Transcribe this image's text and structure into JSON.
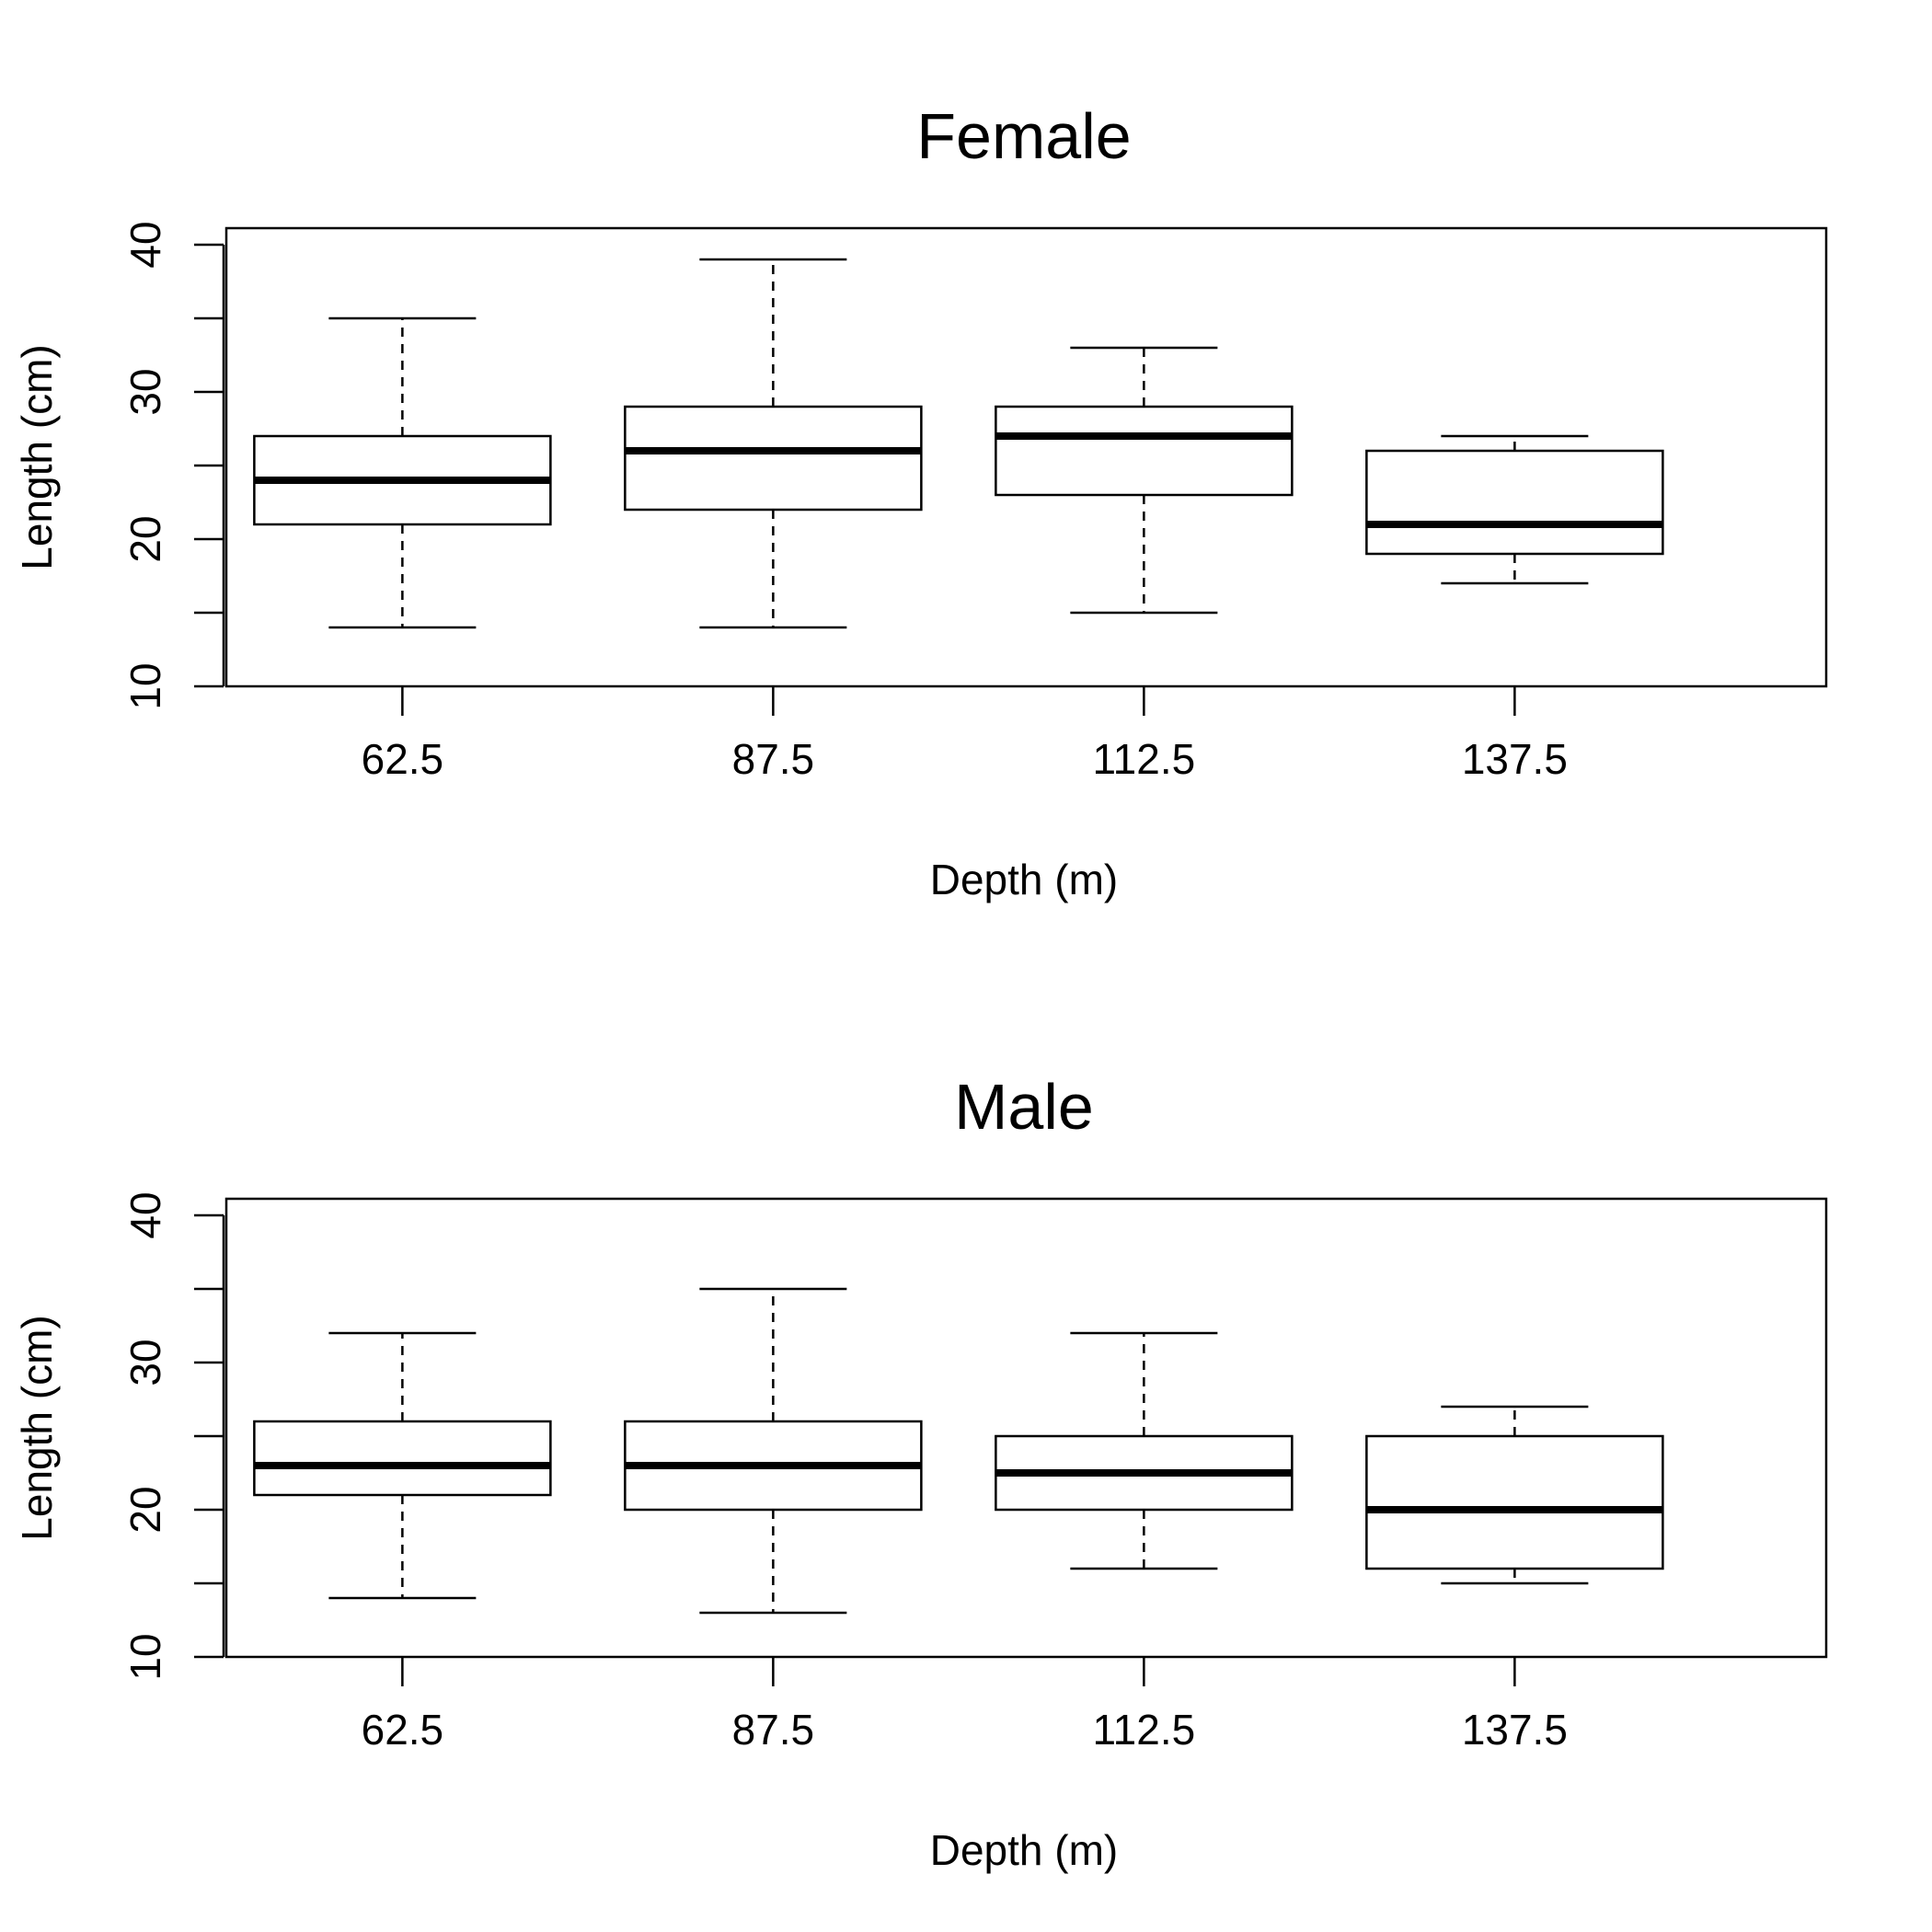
{
  "chart_data": [
    {
      "type": "box",
      "title": "Female",
      "xlabel": "Depth (m)",
      "ylabel": "Length (cm)",
      "ylim": [
        10,
        40
      ],
      "yticks": [
        10,
        15,
        20,
        25,
        30,
        35,
        40
      ],
      "ytick_labels": [
        "10",
        "20",
        "30",
        "40"
      ],
      "categories": [
        "62.5",
        "87.5",
        "112.5",
        "137.5"
      ],
      "boxes": [
        {
          "category": "62.5",
          "min": 14,
          "q1": 21,
          "median": 24,
          "q3": 27,
          "max": 35
        },
        {
          "category": "87.5",
          "min": 14,
          "q1": 22,
          "median": 26,
          "q3": 29,
          "max": 39
        },
        {
          "category": "112.5",
          "min": 15,
          "q1": 23,
          "median": 27,
          "q3": 29,
          "max": 33
        },
        {
          "category": "137.5",
          "min": 17,
          "q1": 19,
          "median": 21,
          "q3": 26,
          "max": 27
        }
      ],
      "grid": false,
      "legend": false
    },
    {
      "type": "box",
      "title": "Male",
      "xlabel": "Depth (m)",
      "ylabel": "Length (cm)",
      "ylim": [
        10,
        40
      ],
      "yticks": [
        10,
        15,
        20,
        25,
        30,
        35,
        40
      ],
      "ytick_labels": [
        "10",
        "20",
        "30",
        "40"
      ],
      "categories": [
        "62.5",
        "87.5",
        "112.5",
        "137.5"
      ],
      "boxes": [
        {
          "category": "62.5",
          "min": 14,
          "q1": 21,
          "median": 23,
          "q3": 26,
          "max": 32
        },
        {
          "category": "87.5",
          "min": 13,
          "q1": 20,
          "median": 23,
          "q3": 26,
          "max": 35
        },
        {
          "category": "112.5",
          "min": 16,
          "q1": 20,
          "median": 22.5,
          "q3": 25,
          "max": 32
        },
        {
          "category": "137.5",
          "min": 15,
          "q1": 16,
          "median": 20,
          "q3": 25,
          "max": 27
        }
      ],
      "grid": false,
      "legend": false
    }
  ],
  "colors": {
    "stroke": "#000000",
    "background": "#ffffff"
  }
}
